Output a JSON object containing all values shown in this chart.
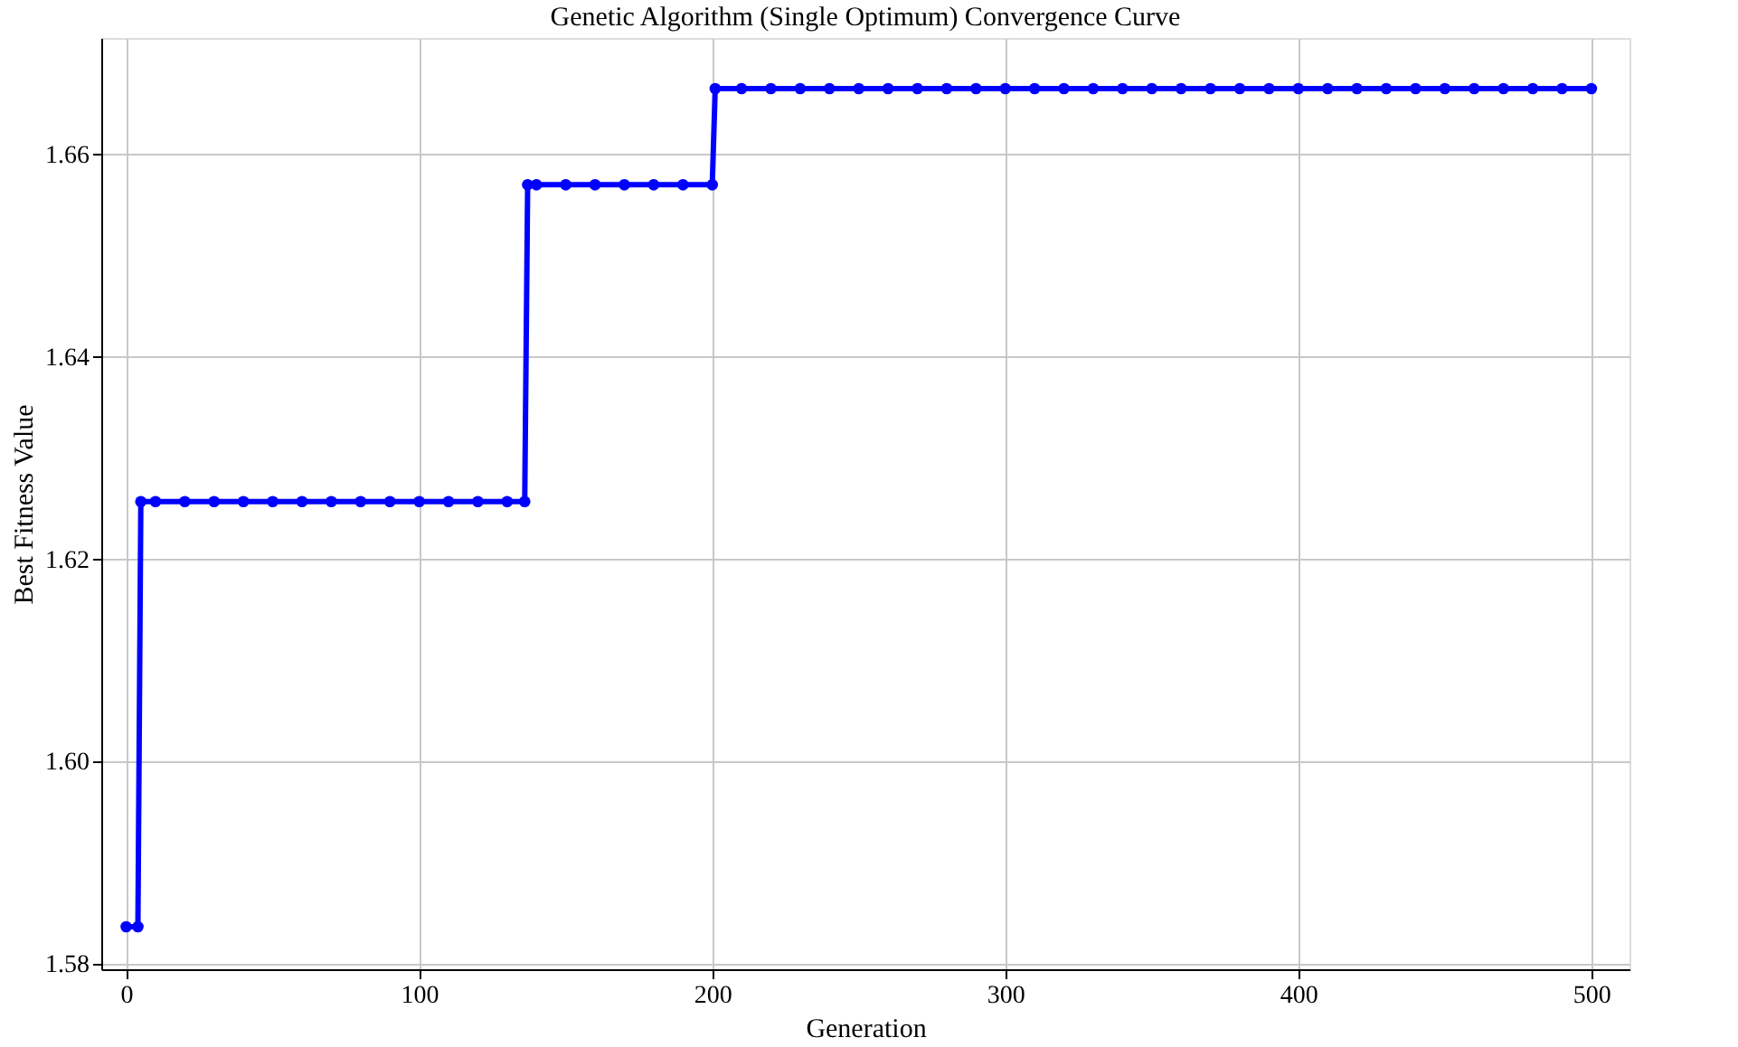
{
  "chart_data": {
    "type": "line",
    "title": "Genetic Algorithm (Single Optimum) Convergence Curve",
    "xlabel": "Generation",
    "ylabel": "Best Fitness Value",
    "xlim": [
      -8.5,
      513
    ],
    "ylim": [
      1.5795,
      1.6715
    ],
    "xticks": [
      0,
      100,
      200,
      300,
      400,
      500
    ],
    "yticks": [
      1.58,
      {
        "value": 1.6,
        "label": "1.60"
      },
      1.62,
      1.64,
      1.66
    ],
    "grid": true,
    "marker": "circle",
    "line_style": "solid",
    "series": [
      {
        "color": "#0000ff",
        "x": [
          0,
          4,
          5,
          10,
          20,
          30,
          40,
          50,
          60,
          70,
          80,
          90,
          100,
          110,
          120,
          130,
          136,
          137,
          140,
          150,
          160,
          170,
          180,
          190,
          200,
          201,
          210,
          220,
          230,
          240,
          250,
          260,
          270,
          280,
          290,
          300,
          310,
          320,
          330,
          340,
          350,
          360,
          370,
          380,
          390,
          400,
          410,
          420,
          430,
          440,
          450,
          460,
          470,
          480,
          490,
          500
        ],
        "values": [
          1.5837,
          1.5837,
          1.6257,
          1.6257,
          1.6257,
          1.6257,
          1.6257,
          1.6257,
          1.6257,
          1.6257,
          1.6257,
          1.6257,
          1.6257,
          1.6257,
          1.6257,
          1.6257,
          1.6257,
          1.657,
          1.657,
          1.657,
          1.657,
          1.657,
          1.657,
          1.657,
          1.657,
          1.6665,
          1.6665,
          1.6665,
          1.6665,
          1.6665,
          1.6665,
          1.6665,
          1.6665,
          1.6665,
          1.6665,
          1.6665,
          1.6665,
          1.6665,
          1.6665,
          1.6665,
          1.6665,
          1.6665,
          1.6665,
          1.6665,
          1.6665,
          1.6665,
          1.6665,
          1.6665,
          1.6665,
          1.6665,
          1.6665,
          1.6665,
          1.6665,
          1.6665,
          1.6665,
          1.6665
        ]
      }
    ]
  }
}
